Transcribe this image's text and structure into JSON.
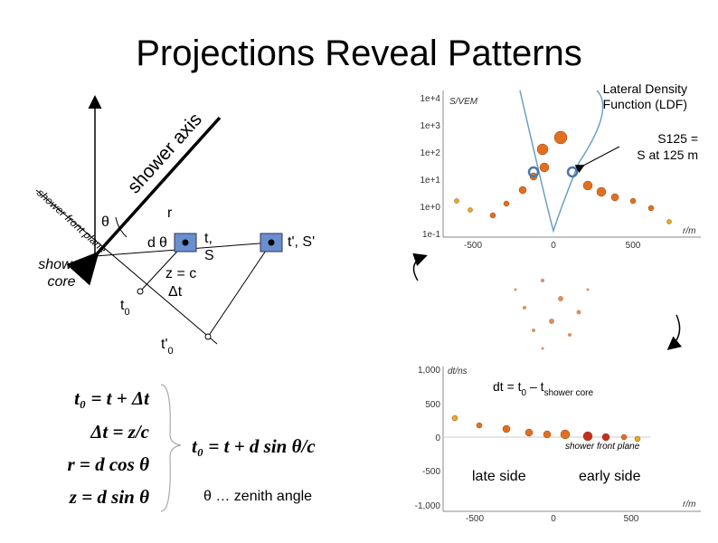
{
  "header": {
    "title": "Projections Reveal Patterns"
  },
  "diagram": {
    "shower_axis": "shower axis",
    "front_plane": "shower front plane",
    "core": [
      "shower",
      "core"
    ],
    "theta1": "θ",
    "r": "r",
    "d": "d",
    "theta2": "θ",
    "det1": [
      "t,",
      "S"
    ],
    "det2": "t', S'",
    "zc": "z = c",
    "dt": "Δt",
    "t0": {
      "main": "t",
      "sub": "0"
    },
    "tp0": {
      "main": "t'",
      "sub": "0"
    }
  },
  "callouts": {
    "ldf": [
      "Lateral Density",
      "Function (LDF)"
    ],
    "s125": [
      "S125 =",
      "S at 125 m"
    ],
    "dt_def": {
      "main": "dt = t",
      "sub1": "0",
      "mid": " – t",
      "sub2": "shower core"
    },
    "late": "late side",
    "early": "early side",
    "zenith": "θ … zenith angle"
  },
  "equations": {
    "left": [
      "t₀ = t + Δt",
      "Δt = z/c",
      "r = d cos θ",
      "z = d sin θ"
    ],
    "right": "t₀ = t + d sin θ/c"
  },
  "ldf_plot": {
    "ylabel": "S/VEM",
    "yticks": [
      "1e+4",
      "1e+3",
      "1e+2",
      "1e+1",
      "1e+0",
      "1e-1"
    ],
    "xticks": [
      "-500",
      "0",
      "500"
    ],
    "xlabel": "r/m"
  },
  "time_plot": {
    "ylabel": "dt/ns",
    "yticks": [
      "1,000",
      "500",
      "0",
      "-500",
      "-1,000"
    ],
    "xticks": [
      "-500",
      "0",
      "500"
    ],
    "xlabel": "r/m",
    "curve_label": "shower front plane"
  }
}
